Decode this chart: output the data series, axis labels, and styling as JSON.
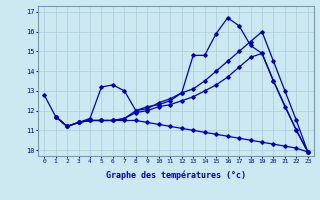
{
  "xlabel": "Graphe des températures (°c)",
  "background_color": "#cce8f0",
  "line_color": "#0000bb",
  "grid_color": "#aaccdd",
  "xlim": [
    -0.5,
    23.5
  ],
  "ylim": [
    9.7,
    17.3
  ],
  "yticks": [
    10,
    11,
    12,
    13,
    14,
    15,
    16,
    17
  ],
  "xticks": [
    0,
    1,
    2,
    3,
    4,
    5,
    6,
    7,
    8,
    9,
    10,
    11,
    12,
    13,
    14,
    15,
    16,
    17,
    18,
    19,
    20,
    21,
    22,
    23
  ],
  "series": [
    {
      "x": [
        0,
        1,
        2,
        3,
        4,
        5,
        6,
        7,
        8,
        9,
        10,
        11,
        12,
        13,
        14,
        15,
        16,
        17,
        18,
        19,
        20,
        21,
        22,
        23
      ],
      "y": [
        12.8,
        11.7,
        11.2,
        11.4,
        11.6,
        13.2,
        13.3,
        13.0,
        12.0,
        12.2,
        12.3,
        12.5,
        12.9,
        14.8,
        14.8,
        15.9,
        16.7,
        16.3,
        15.3,
        14.9,
        13.5,
        12.2,
        11.0,
        9.9
      ]
    },
    {
      "x": [
        1,
        2,
        3,
        4,
        5,
        6,
        7,
        8,
        9,
        10,
        11,
        12,
        13,
        14,
        15,
        16,
        17,
        18,
        19,
        20,
        22,
        23
      ],
      "y": [
        11.7,
        11.2,
        11.4,
        11.5,
        11.5,
        11.5,
        11.6,
        11.9,
        12.0,
        12.2,
        12.3,
        12.5,
        12.7,
        13.0,
        13.3,
        13.7,
        14.2,
        14.7,
        14.9,
        13.5,
        11.0,
        9.9
      ]
    },
    {
      "x": [
        1,
        2,
        3,
        4,
        5,
        6,
        7,
        8,
        9,
        10,
        11,
        12,
        13,
        14,
        15,
        16,
        17,
        18,
        19,
        20,
        21,
        22,
        23
      ],
      "y": [
        11.7,
        11.2,
        11.4,
        11.5,
        11.5,
        11.5,
        11.5,
        11.5,
        11.4,
        11.3,
        11.2,
        11.1,
        11.0,
        10.9,
        10.8,
        10.7,
        10.6,
        10.5,
        10.4,
        10.3,
        10.2,
        10.1,
        9.9
      ]
    },
    {
      "x": [
        1,
        2,
        3,
        4,
        5,
        6,
        7,
        8,
        9,
        10,
        11,
        12,
        13,
        14,
        15,
        16,
        17,
        18,
        19,
        20,
        21,
        22,
        23
      ],
      "y": [
        11.7,
        11.2,
        11.4,
        11.5,
        11.5,
        11.5,
        11.6,
        12.0,
        12.1,
        12.4,
        12.6,
        12.9,
        13.1,
        13.5,
        14.0,
        14.5,
        15.0,
        15.5,
        16.0,
        14.5,
        13.0,
        11.5,
        9.9
      ]
    }
  ]
}
